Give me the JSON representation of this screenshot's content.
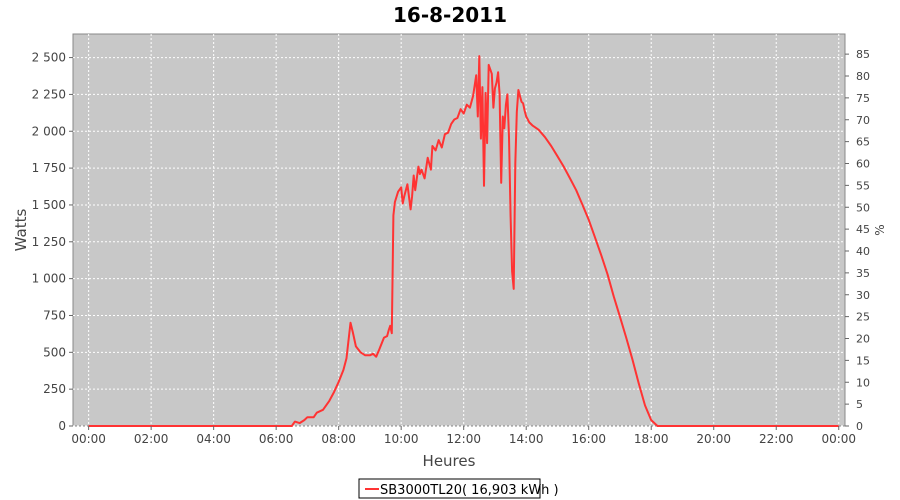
{
  "chart_data": {
    "type": "line",
    "title": "16-8-2011",
    "xlabel": "Heures",
    "ylabel": "Watts",
    "y2label": "%",
    "xlim": [
      -0.5,
      24.2
    ],
    "ylim": [
      0,
      2660
    ],
    "y2lim": [
      0,
      89.6
    ],
    "x_ticks": [
      0,
      2,
      4,
      6,
      8,
      10,
      12,
      14,
      16,
      18,
      20,
      22,
      24
    ],
    "x_tick_labels": [
      "00:00",
      "02:00",
      "04:00",
      "06:00",
      "08:00",
      "10:00",
      "12:00",
      "14:00",
      "16:00",
      "18:00",
      "20:00",
      "22:00",
      "00:00"
    ],
    "y_ticks": [
      0,
      250,
      500,
      750,
      1000,
      1250,
      1500,
      1750,
      2000,
      2250,
      2500
    ],
    "y_tick_labels": [
      "0",
      "250",
      "500",
      "750",
      "1 000",
      "1 250",
      "1 500",
      "1 750",
      "2 000",
      "2 250",
      "2 500"
    ],
    "y2_ticks": [
      0,
      5,
      10,
      15,
      20,
      25,
      30,
      35,
      40,
      45,
      50,
      55,
      60,
      65,
      70,
      75,
      80,
      85
    ],
    "grid": true,
    "background_color": "#c8c8c8",
    "legend_position": "bottom",
    "series": [
      {
        "name": "SB3000TL20( 16,903 kWh )",
        "color": "#ff3333",
        "x": [
          0,
          6.5,
          6.6,
          6.75,
          6.9,
          7.0,
          7.2,
          7.3,
          7.5,
          7.7,
          7.85,
          8.0,
          8.15,
          8.25,
          8.3,
          8.38,
          8.45,
          8.55,
          8.7,
          8.85,
          9.0,
          9.1,
          9.2,
          9.3,
          9.45,
          9.55,
          9.6,
          9.65,
          9.7,
          9.75,
          9.8,
          9.9,
          10.0,
          10.05,
          10.1,
          10.2,
          10.3,
          10.35,
          10.4,
          10.45,
          10.55,
          10.6,
          10.65,
          10.75,
          10.85,
          10.95,
          11.0,
          11.1,
          11.2,
          11.3,
          11.4,
          11.5,
          11.6,
          11.7,
          11.8,
          11.9,
          12.0,
          12.1,
          12.2,
          12.3,
          12.4,
          12.45,
          12.5,
          12.55,
          12.6,
          12.65,
          12.7,
          12.75,
          12.8,
          12.9,
          12.95,
          13.0,
          13.05,
          13.1,
          13.15,
          13.2,
          13.25,
          13.3,
          13.35,
          13.4,
          13.45,
          13.5,
          13.55,
          13.6,
          13.65,
          13.7,
          13.75,
          13.8,
          13.85,
          13.9,
          13.95,
          14.0,
          14.05,
          14.1,
          14.2,
          14.4,
          14.6,
          14.8,
          15.0,
          15.2,
          15.4,
          15.6,
          15.8,
          16.0,
          16.2,
          16.4,
          16.6,
          16.8,
          17.0,
          17.2,
          17.4,
          17.6,
          17.8,
          18.0,
          18.2,
          18.4,
          18.6,
          18.8,
          19.0,
          19.2,
          19.4,
          19.6,
          19.7,
          19.8,
          20.0,
          22.0,
          24.0
        ],
        "y": [
          0,
          0,
          30,
          20,
          40,
          60,
          60,
          90,
          110,
          170,
          230,
          300,
          380,
          460,
          550,
          700,
          640,
          540,
          500,
          480,
          480,
          490,
          470,
          520,
          600,
          610,
          650,
          680,
          630,
          1430,
          1520,
          1590,
          1620,
          1510,
          1560,
          1640,
          1470,
          1560,
          1700,
          1600,
          1760,
          1710,
          1740,
          1680,
          1820,
          1740,
          1900,
          1870,
          1940,
          1890,
          1980,
          1990,
          2050,
          2080,
          2090,
          2150,
          2120,
          2180,
          2160,
          2240,
          2380,
          2100,
          2510,
          1950,
          2300,
          1630,
          2260,
          1920,
          2450,
          2390,
          2160,
          2290,
          2330,
          2400,
          2250,
          1650,
          2100,
          2020,
          2180,
          2250,
          1960,
          1420,
          1050,
          930,
          1780,
          2130,
          2280,
          2240,
          2200,
          2190,
          2140,
          2100,
          2080,
          2060,
          2040,
          2010,
          1960,
          1900,
          1830,
          1760,
          1680,
          1600,
          1500,
          1400,
          1280,
          1160,
          1030,
          880,
          740,
          600,
          450,
          290,
          140,
          40,
          0,
          0,
          0,
          0,
          0,
          0,
          0,
          0,
          0,
          0,
          0,
          0,
          0
        ]
      }
    ]
  }
}
